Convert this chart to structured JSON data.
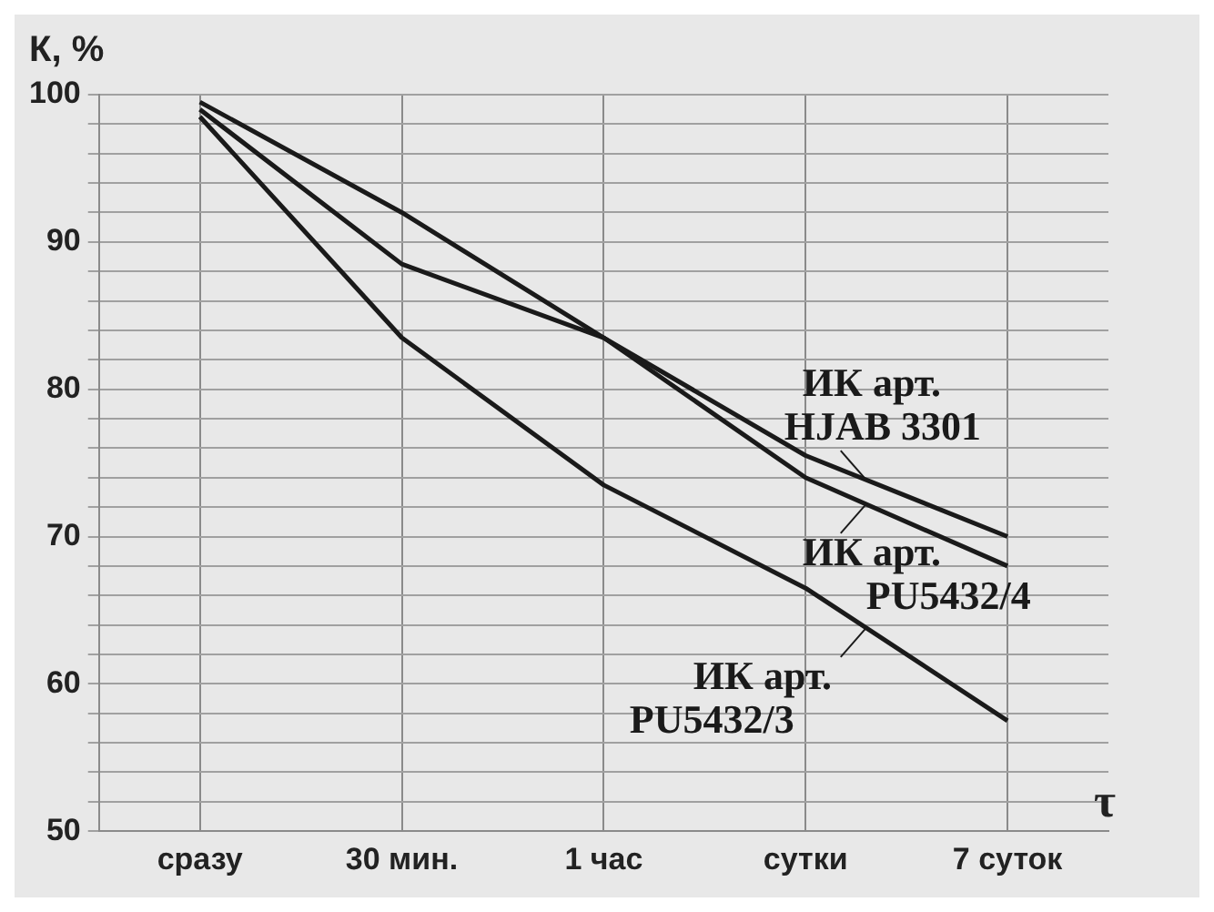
{
  "chart_data": {
    "type": "line",
    "ylabel": "К, %",
    "xlabel": "τ",
    "categories": [
      "сразу",
      "30 мин.",
      "1 час",
      "сутки",
      "7 суток"
    ],
    "ylim": [
      50,
      100
    ],
    "yticks": [
      50,
      {
        "value": 52,
        "label": null
      },
      {
        "value": 54,
        "label": null
      },
      {
        "value": 56,
        "label": null
      },
      {
        "value": 58,
        "label": null
      },
      60,
      {
        "value": 62,
        "label": null
      },
      {
        "value": 64,
        "label": null
      },
      {
        "value": 66,
        "label": null
      },
      {
        "value": 68,
        "label": null
      },
      70,
      {
        "value": 72,
        "label": null
      },
      {
        "value": 74,
        "label": null
      },
      {
        "value": 76,
        "label": null
      },
      {
        "value": 78,
        "label": null
      },
      80,
      {
        "value": 82,
        "label": null
      },
      {
        "value": 84,
        "label": null
      },
      {
        "value": 86,
        "label": null
      },
      {
        "value": 88,
        "label": null
      },
      90,
      {
        "value": 92,
        "label": null
      },
      {
        "value": 94,
        "label": null
      },
      {
        "value": 96,
        "label": null
      },
      {
        "value": 98,
        "label": null
      },
      100
    ],
    "grid": true,
    "legend": "right",
    "marker": "none",
    "line_style": "solid",
    "series": [
      {
        "name": "ИК арт. HJAB 3301",
        "color": "#1a1a1a",
        "values": [
          99.5,
          92,
          83.5,
          75.5,
          70
        ]
      },
      {
        "name": "ИК арт. PU5432/4",
        "color": "#1a1a1a",
        "values": [
          99,
          88.5,
          83.5,
          74,
          68
        ]
      },
      {
        "name": "ИК арт. PU5432/3",
        "color": "#1a1a1a",
        "values": [
          98.5,
          83.5,
          73.5,
          66.5,
          57.5
        ]
      }
    ]
  }
}
